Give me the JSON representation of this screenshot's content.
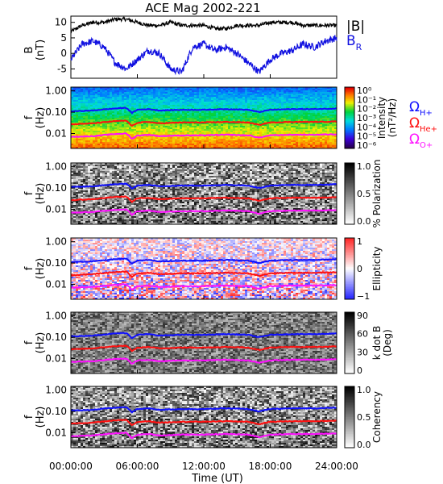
{
  "chart_data": {
    "type": "heatmap",
    "title": "ACE Mag 2002-221",
    "xlabel": "Time (UT)",
    "x_ticks": [
      "00:00:00",
      "06:00:00",
      "12:00:00",
      "18:00:00",
      "24:00:00"
    ],
    "xlim_hours": [
      0,
      24
    ],
    "line_panel": {
      "ylabel": "B",
      "yunit": "(nT)",
      "ylim": [
        -8,
        12
      ],
      "y_ticks": [
        "10",
        "5",
        "0",
        "-5"
      ],
      "series": [
        {
          "name": "|B|",
          "color": "#000000",
          "x": [
            0,
            1,
            2,
            3,
            4,
            5,
            6,
            7,
            8,
            9,
            10,
            11,
            12,
            13,
            14,
            15,
            16,
            17,
            18,
            19,
            20,
            21,
            22,
            23,
            24
          ],
          "values": [
            7,
            9,
            10,
            10,
            11,
            11,
            10,
            9,
            9,
            10,
            9,
            9,
            9,
            8,
            8,
            9,
            9,
            9,
            10,
            10,
            10,
            9,
            9,
            9,
            9
          ]
        },
        {
          "name": "B",
          "subscript": "R",
          "color": "#1010e0",
          "x": [
            0,
            1,
            2,
            3,
            4,
            5,
            6,
            7,
            8,
            9,
            10,
            11,
            12,
            13,
            14,
            15,
            16,
            17,
            18,
            19,
            20,
            21,
            22,
            23,
            24
          ],
          "values": [
            -2,
            3,
            4,
            2,
            -3,
            -5,
            -2,
            1,
            0,
            -5,
            -6,
            2,
            3,
            1,
            2,
            0,
            -3,
            -6,
            -2,
            0,
            1,
            3,
            2,
            4,
            5
          ]
        }
      ]
    },
    "spectrogram_panels": [
      {
        "ylabel": "f",
        "yunit": "(Hz)",
        "quantity": "Intensity",
        "unit": "(nT²/Hz)",
        "colorbar_ticks": [
          "10⁰",
          "10⁻¹",
          "10⁻²",
          "10⁻³",
          "10⁻⁴",
          "10⁻⁵",
          "10⁻⁶"
        ],
        "colormap": "rainbow"
      },
      {
        "ylabel": "f",
        "yunit": "(Hz)",
        "quantity": "% Polarization",
        "unit": "",
        "colorbar_ticks": [
          "1.0",
          "0.5",
          "0.0"
        ],
        "colormap": "gray"
      },
      {
        "ylabel": "f",
        "yunit": "(Hz)",
        "quantity": "Ellipticity",
        "unit": "",
        "colorbar_ticks": [
          "1",
          "0",
          "−1"
        ],
        "colormap": "bwr"
      },
      {
        "ylabel": "f",
        "yunit": "(Hz)",
        "quantity": "k dot B",
        "unit": "(Deg)",
        "colorbar_ticks": [
          "90",
          "60",
          "30",
          "0"
        ],
        "colormap": "gray"
      },
      {
        "ylabel": "f",
        "yunit": "(Hz)",
        "quantity": "Coherency",
        "unit": "",
        "colorbar_ticks": [
          "1.0",
          "0.5",
          "0.0"
        ],
        "colormap": "gray"
      }
    ],
    "frequency_ticks": [
      "1.00",
      "0.10",
      "0.01"
    ],
    "frequency_range_hz": [
      0.002,
      1.5
    ],
    "gyrofrequency_lines": [
      {
        "name": "Ω",
        "subscript": "H+",
        "color": "#1010ff",
        "x": [
          0,
          2,
          4,
          5,
          5.5,
          6,
          7,
          8,
          10,
          12,
          14,
          16,
          17,
          18,
          20,
          22,
          24
        ],
        "f_hz": [
          0.11,
          0.12,
          0.15,
          0.16,
          0.09,
          0.13,
          0.14,
          0.12,
          0.13,
          0.13,
          0.14,
          0.13,
          0.1,
          0.13,
          0.14,
          0.14,
          0.15
        ]
      },
      {
        "name": "Ω",
        "subscript": "He+",
        "color": "#ff1010",
        "x": [
          0,
          2,
          4,
          5,
          5.5,
          6,
          7,
          8,
          10,
          12,
          14,
          16,
          17,
          18,
          20,
          22,
          24
        ],
        "f_hz": [
          0.027,
          0.03,
          0.038,
          0.04,
          0.022,
          0.032,
          0.035,
          0.03,
          0.033,
          0.033,
          0.035,
          0.033,
          0.025,
          0.033,
          0.035,
          0.035,
          0.037
        ]
      },
      {
        "name": "Ω",
        "subscript": "O+",
        "color": "#ff10ff",
        "x": [
          0,
          2,
          4,
          5,
          5.5,
          6,
          7,
          8,
          10,
          12,
          14,
          16,
          17,
          18,
          20,
          22,
          24
        ],
        "f_hz": [
          0.007,
          0.0075,
          0.0095,
          0.01,
          0.0055,
          0.008,
          0.0088,
          0.0075,
          0.0082,
          0.0082,
          0.0088,
          0.0082,
          0.0063,
          0.0082,
          0.0088,
          0.0088,
          0.0093
        ]
      }
    ]
  },
  "colors": {
    "absB": "#000000",
    "BR": "#1010e0",
    "omega_h": "#1010ff",
    "omega_he": "#ff1010",
    "omega_o": "#ff10ff"
  }
}
